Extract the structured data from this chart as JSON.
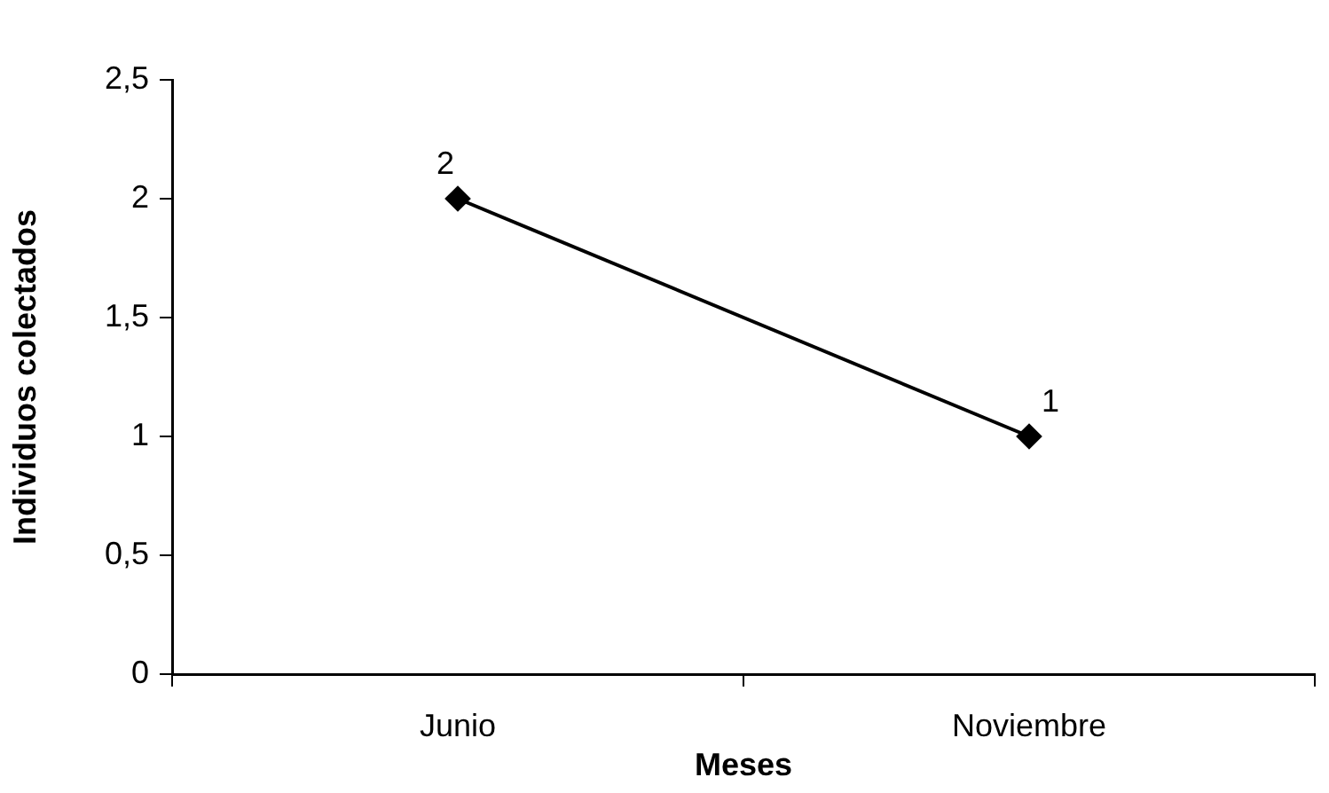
{
  "chart_data": {
    "type": "line",
    "xlabel": "Meses",
    "ylabel": "Individuos colectados",
    "categories": [
      "Junio",
      "Noviembre"
    ],
    "series": [
      {
        "color": "#000000",
        "values": [
          2,
          1
        ]
      }
    ],
    "ylim": [
      0,
      2.5
    ],
    "yticks": [
      {
        "value": 0,
        "label": "0"
      },
      {
        "value": 0.5,
        "label": "0,5"
      },
      {
        "value": 1,
        "label": "1"
      },
      {
        "value": 1.5,
        "label": "1,5"
      },
      {
        "value": 2,
        "label": "2"
      },
      {
        "value": 2.5,
        "label": "2,5"
      }
    ],
    "grid": false,
    "legend": false,
    "marker": "diamond",
    "line_style": "solid",
    "data_labels": true
  }
}
